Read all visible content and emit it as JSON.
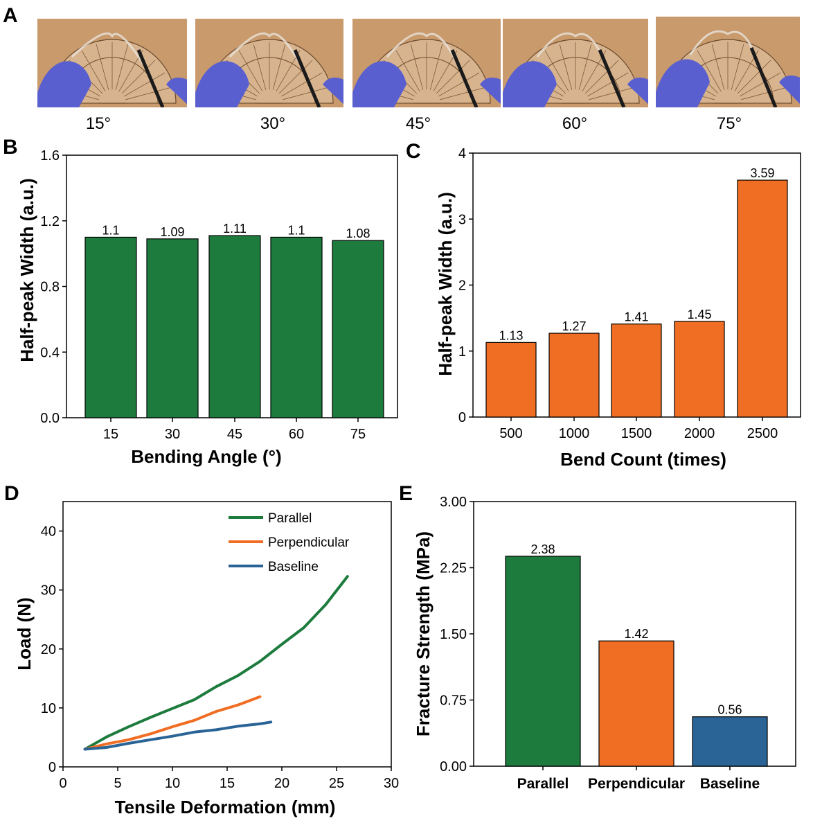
{
  "panels": {
    "A": "A",
    "B": "B",
    "C": "C",
    "D": "D",
    "E": "E"
  },
  "photos": {
    "captions": [
      "15°",
      "30°",
      "45°",
      "60°",
      "75°"
    ]
  },
  "colors": {
    "green": "#1e7b3e",
    "orange": "#f06e23",
    "blue": "#2a6496",
    "photo_bg": "#c89a6c",
    "glove": "#5a5fcf"
  },
  "chart_data": [
    {
      "id": "B",
      "type": "bar",
      "categories": [
        "15",
        "30",
        "45",
        "60",
        "75"
      ],
      "values": [
        1.1,
        1.09,
        1.11,
        1.1,
        1.08
      ],
      "value_labels": [
        "1.1",
        "1.09",
        "1.11",
        "1.1",
        "1.08"
      ],
      "xlabel": "Bending Angle (°)",
      "ylabel": "Half-peak Width (a.u.)",
      "ylim": [
        0,
        1.6
      ],
      "yticks": [
        "0.0",
        "0.4",
        "0.8",
        "1.2",
        "1.6"
      ],
      "color": "#1e7b3e"
    },
    {
      "id": "C",
      "type": "bar",
      "categories": [
        "500",
        "1000",
        "1500",
        "2000",
        "2500"
      ],
      "values": [
        1.13,
        1.27,
        1.41,
        1.45,
        3.59
      ],
      "value_labels": [
        "1.13",
        "1.27",
        "1.41",
        "1.45",
        "3.59"
      ],
      "xlabel": "Bend Count (times)",
      "ylabel": "Half-peak Width (a.u.)",
      "ylim": [
        0,
        4
      ],
      "yticks": [
        "0",
        "1",
        "2",
        "3",
        "4"
      ],
      "color": "#f06e23"
    },
    {
      "id": "D",
      "type": "line",
      "xlabel": "Tensile Deformation (mm)",
      "ylabel": "Load (N)",
      "xlim": [
        0,
        30
      ],
      "ylim": [
        0,
        45
      ],
      "xticks": [
        "0",
        "5",
        "10",
        "15",
        "20",
        "25",
        "30"
      ],
      "yticks": [
        "0",
        "10",
        "20",
        "30",
        "40"
      ],
      "legend": "top-right",
      "series": [
        {
          "name": "Parallel",
          "color": "#1e7b3e",
          "x": [
            2,
            4,
            6,
            8,
            10,
            12,
            14,
            16,
            18,
            20,
            22,
            24,
            26
          ],
          "y": [
            3.0,
            5.1,
            6.8,
            8.4,
            9.9,
            11.4,
            13.6,
            15.5,
            17.9,
            20.8,
            23.6,
            27.5,
            32.3
          ]
        },
        {
          "name": "Perpendicular",
          "color": "#f06e23",
          "x": [
            2,
            4,
            6,
            8,
            10,
            12,
            14,
            16,
            18
          ],
          "y": [
            3.0,
            3.9,
            4.6,
            5.6,
            6.8,
            7.9,
            9.4,
            10.5,
            11.9
          ]
        },
        {
          "name": "Baseline",
          "color": "#2a6496",
          "x": [
            2,
            4,
            6,
            8,
            10,
            12,
            14,
            16,
            18,
            19
          ],
          "y": [
            3.0,
            3.3,
            4.0,
            4.6,
            5.2,
            5.9,
            6.3,
            6.9,
            7.3,
            7.6
          ]
        }
      ]
    },
    {
      "id": "E",
      "type": "bar",
      "categories": [
        "Parallel",
        "Perpendicular",
        "Baseline"
      ],
      "values": [
        2.38,
        1.42,
        0.56
      ],
      "value_labels": [
        "2.38",
        "1.42",
        "0.56"
      ],
      "ylabel": "Fracture Strength (MPa)",
      "xlabel": "",
      "ylim": [
        0,
        3.0
      ],
      "yticks": [
        "0.00",
        "0.75",
        "1.50",
        "2.25",
        "3.00"
      ],
      "colors": [
        "#1e7b3e",
        "#f06e23",
        "#2a6496"
      ]
    }
  ]
}
